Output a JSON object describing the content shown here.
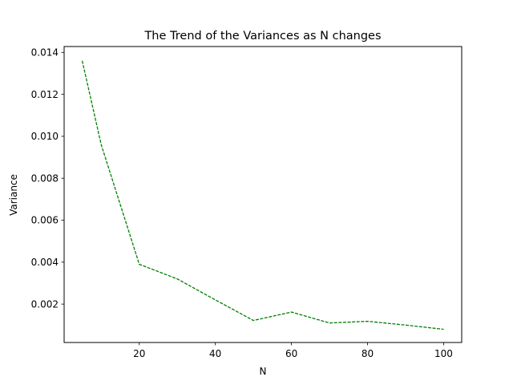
{
  "chart_data": {
    "type": "line",
    "title": "The Trend of the Variances as N changes",
    "xlabel": "N",
    "ylabel": "Variance",
    "xlim": [
      0.25,
      104.75
    ],
    "ylim": [
      0.00017,
      0.01428
    ],
    "x_ticks": [
      20,
      40,
      60,
      80,
      100
    ],
    "y_ticks": [
      0.002,
      0.004,
      0.006,
      0.008,
      0.01,
      0.012,
      0.014
    ],
    "x_tick_labels": [
      "20",
      "40",
      "60",
      "80",
      "100"
    ],
    "y_tick_labels": [
      "0.002",
      "0.004",
      "0.006",
      "0.008",
      "0.010",
      "0.012",
      "0.014"
    ],
    "grid": false,
    "series": [
      {
        "line_style": "dashed",
        "color": "#008000",
        "x": [
          5,
          10,
          20,
          30,
          40,
          50,
          60,
          70,
          80,
          90,
          100
        ],
        "y": [
          0.0136,
          0.0096,
          0.0039,
          0.0032,
          0.0022,
          0.00122,
          0.00162,
          0.0011,
          0.00118,
          0.001,
          0.0008
        ]
      }
    ]
  }
}
